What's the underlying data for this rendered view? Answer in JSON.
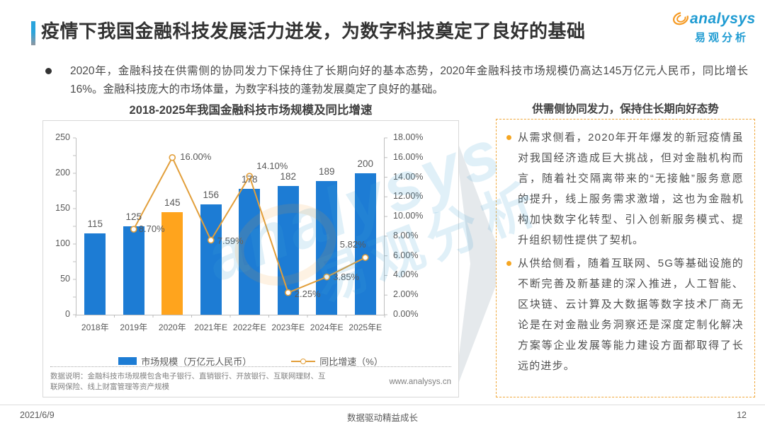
{
  "page": {
    "title": "疫情下我国金融科技发展活力迸发，为数字科技奠定了良好的基础",
    "logo": {
      "brand_en": "analysys",
      "brand_cn": "易观分析"
    },
    "intro_bullet": "2020年，金融科技在供需侧的协同发力下保持住了长期向好的基本态势，2020年金融科技市场规模仍高达145万亿元人民币，同比增长16%。金融科技庞大的市场体量，为数字科技的蓬勃发展奠定了良好的基础。",
    "footer": {
      "date": "2021/6/9",
      "slogan": "数据驱动精益成长",
      "page_number": "12"
    }
  },
  "chart_data": {
    "type": "bar",
    "subtype": "bar-line-combo",
    "title": "2018-2025年我国金融科技市场规模及同比增速",
    "categories": [
      "2018年",
      "2019年",
      "2020年",
      "2021年E",
      "2022年E",
      "2023年E",
      "2024年E",
      "2025年E"
    ],
    "series": [
      {
        "name": "市场规模（万亿元人民币）",
        "type": "bar",
        "axis": "left",
        "values": [
          115,
          125,
          145,
          156,
          178,
          182,
          189,
          200
        ],
        "color": "#1D7CD4",
        "highlight_index": 2,
        "highlight_color": "#FFA41D"
      },
      {
        "name": "同比增速（%）",
        "type": "line",
        "axis": "right",
        "values": [
          null,
          8.7,
          16.0,
          7.59,
          14.1,
          2.25,
          3.85,
          5.82
        ],
        "labels": [
          "",
          "8.70%",
          "16.00%",
          "7.59%",
          "14.10%",
          "2.25%",
          "3.85%",
          "5.82%"
        ],
        "color": "#E29F3B"
      }
    ],
    "left_axis": {
      "min": 0,
      "max": 250,
      "ticks": [
        0,
        50,
        100,
        150,
        200,
        250
      ]
    },
    "right_axis": {
      "min": 0,
      "max": 18,
      "ticks": [
        "0.00%",
        "2.00%",
        "4.00%",
        "6.00%",
        "8.00%",
        "10.00%",
        "12.00%",
        "14.00%",
        "16.00%",
        "18.00%"
      ]
    },
    "grid": "off",
    "legend_position": "bottom"
  },
  "chart_note": {
    "text": "数据说明：金融科技市场规模包含电子银行、直销银行、开放银行、互联网理财、互联网保险、线上财富管理等资产规模",
    "site": "www.analysys.cn"
  },
  "right_panel": {
    "title": "供需侧协同发力，保持住长期向好态势",
    "bullets": [
      "从需求侧看，2020年开年爆发的新冠疫情虽对我国经济造成巨大挑战，但对金融机构而言，随着社交隔离带来的“无接触”服务意愿的提升，线上服务需求激增，这也为金融机构加快数字化转型、引入创新服务模式、提升组织韧性提供了契机。",
      "从供给侧看，随着互联网、5G等基础设施的不断完善及新基建的深入推进，人工智能、区块链、云计算及大数据等数字技术厂商无论是在对金融业务洞察还是深度定制化解决方案等企业发展等能力建设方面都取得了长远的进步。"
    ]
  },
  "watermark": {
    "line1": "analysys",
    "line2": "易观分析"
  }
}
